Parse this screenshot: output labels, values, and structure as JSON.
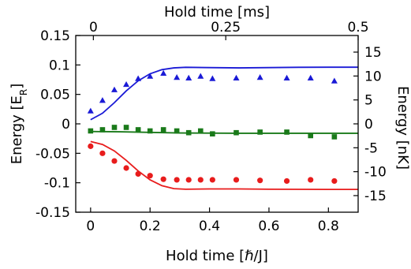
{
  "chart_data": {
    "type": "scatter",
    "title": "",
    "xlabel": "Hold time [ℏ/J]",
    "ylabel": "Energy [E_R]",
    "ylabel_main": "Energy [E",
    "ylabel_sub": "R",
    "ylabel_close": "]",
    "top_xlabel": "Hold time [ms]",
    "right_ylabel": "Energy [nK]",
    "xlim": [
      -0.05,
      0.9
    ],
    "ylim": [
      -0.15,
      0.15
    ],
    "top_xlim": [
      -0.0333,
      0.5
    ],
    "right_ylim": [
      -18.47,
      18.47
    ],
    "x_ticks": [
      0,
      0.2,
      0.4,
      0.6,
      0.8
    ],
    "x_tick_labels": [
      "0",
      "0.2",
      "0.4",
      "0.6",
      "0.8"
    ],
    "y_ticks": [
      -0.15,
      -0.1,
      -0.05,
      0,
      0.05,
      0.1,
      0.15
    ],
    "y_tick_labels": [
      "-0.15",
      "-0.1",
      "-0.05",
      "0",
      "0.05",
      "0.1",
      "0.15"
    ],
    "top_ticks": [
      0,
      0.25,
      0.5
    ],
    "top_tick_labels": [
      "0",
      "0.25",
      "0.5"
    ],
    "right_ticks": [
      -15,
      -10,
      -5,
      0,
      5,
      10,
      15
    ],
    "right_tick_labels": [
      "-15",
      "-10",
      "-5",
      "0",
      "5",
      "10",
      "15"
    ],
    "grid": false,
    "series": [
      {
        "color": "#1a1ad6",
        "marker": "triangle",
        "points": [
          {
            "x": 0.0,
            "y": 0.022
          },
          {
            "x": 0.04,
            "y": 0.04
          },
          {
            "x": 0.08,
            "y": 0.058
          },
          {
            "x": 0.12,
            "y": 0.067
          },
          {
            "x": 0.16,
            "y": 0.077
          },
          {
            "x": 0.2,
            "y": 0.081
          },
          {
            "x": 0.245,
            "y": 0.086
          },
          {
            "x": 0.29,
            "y": 0.079
          },
          {
            "x": 0.33,
            "y": 0.078
          },
          {
            "x": 0.37,
            "y": 0.081
          },
          {
            "x": 0.41,
            "y": 0.077
          },
          {
            "x": 0.49,
            "y": 0.078
          },
          {
            "x": 0.57,
            "y": 0.079
          },
          {
            "x": 0.66,
            "y": 0.078
          },
          {
            "x": 0.74,
            "y": 0.078
          },
          {
            "x": 0.82,
            "y": 0.073
          }
        ],
        "curve": [
          {
            "x": 0.0,
            "y": 0.007
          },
          {
            "x": 0.04,
            "y": 0.018
          },
          {
            "x": 0.08,
            "y": 0.036
          },
          {
            "x": 0.12,
            "y": 0.056
          },
          {
            "x": 0.16,
            "y": 0.073
          },
          {
            "x": 0.2,
            "y": 0.085
          },
          {
            "x": 0.24,
            "y": 0.092
          },
          {
            "x": 0.28,
            "y": 0.095
          },
          {
            "x": 0.32,
            "y": 0.096
          },
          {
            "x": 0.4,
            "y": 0.0955
          },
          {
            "x": 0.5,
            "y": 0.095
          },
          {
            "x": 0.6,
            "y": 0.0955
          },
          {
            "x": 0.7,
            "y": 0.096
          },
          {
            "x": 0.8,
            "y": 0.0962
          },
          {
            "x": 0.9,
            "y": 0.0962
          }
        ]
      },
      {
        "color": "#1a7a1a",
        "marker": "square",
        "points": [
          {
            "x": 0.0,
            "y": -0.012
          },
          {
            "x": 0.04,
            "y": -0.01
          },
          {
            "x": 0.08,
            "y": -0.006
          },
          {
            "x": 0.12,
            "y": -0.006
          },
          {
            "x": 0.16,
            "y": -0.01
          },
          {
            "x": 0.2,
            "y": -0.012
          },
          {
            "x": 0.245,
            "y": -0.01
          },
          {
            "x": 0.29,
            "y": -0.012
          },
          {
            "x": 0.33,
            "y": -0.015
          },
          {
            "x": 0.37,
            "y": -0.012
          },
          {
            "x": 0.41,
            "y": -0.017
          },
          {
            "x": 0.49,
            "y": -0.015
          },
          {
            "x": 0.57,
            "y": -0.014
          },
          {
            "x": 0.66,
            "y": -0.014
          },
          {
            "x": 0.74,
            "y": -0.02
          },
          {
            "x": 0.82,
            "y": -0.022
          }
        ],
        "curve": [
          {
            "x": 0.0,
            "y": -0.013
          },
          {
            "x": 0.1,
            "y": -0.0135
          },
          {
            "x": 0.2,
            "y": -0.0145
          },
          {
            "x": 0.3,
            "y": -0.0155
          },
          {
            "x": 0.5,
            "y": -0.016
          },
          {
            "x": 0.7,
            "y": -0.016
          },
          {
            "x": 0.9,
            "y": -0.016
          }
        ]
      },
      {
        "color": "#e81c1c",
        "marker": "circle",
        "points": [
          {
            "x": 0.0,
            "y": -0.038
          },
          {
            "x": 0.04,
            "y": -0.05
          },
          {
            "x": 0.08,
            "y": -0.063
          },
          {
            "x": 0.12,
            "y": -0.075
          },
          {
            "x": 0.16,
            "y": -0.085
          },
          {
            "x": 0.2,
            "y": -0.088
          },
          {
            "x": 0.245,
            "y": -0.094
          },
          {
            "x": 0.29,
            "y": -0.095
          },
          {
            "x": 0.33,
            "y": -0.095
          },
          {
            "x": 0.37,
            "y": -0.095
          },
          {
            "x": 0.41,
            "y": -0.095
          },
          {
            "x": 0.49,
            "y": -0.095
          },
          {
            "x": 0.57,
            "y": -0.096
          },
          {
            "x": 0.66,
            "y": -0.097
          },
          {
            "x": 0.74,
            "y": -0.095
          },
          {
            "x": 0.82,
            "y": -0.097
          }
        ],
        "curve": [
          {
            "x": 0.0,
            "y": -0.03
          },
          {
            "x": 0.04,
            "y": -0.035
          },
          {
            "x": 0.08,
            "y": -0.046
          },
          {
            "x": 0.12,
            "y": -0.062
          },
          {
            "x": 0.16,
            "y": -0.08
          },
          {
            "x": 0.2,
            "y": -0.095
          },
          {
            "x": 0.24,
            "y": -0.105
          },
          {
            "x": 0.28,
            "y": -0.11
          },
          {
            "x": 0.32,
            "y": -0.111
          },
          {
            "x": 0.4,
            "y": -0.1105
          },
          {
            "x": 0.5,
            "y": -0.1105
          },
          {
            "x": 0.6,
            "y": -0.111
          },
          {
            "x": 0.7,
            "y": -0.1112
          },
          {
            "x": 0.8,
            "y": -0.1113
          },
          {
            "x": 0.9,
            "y": -0.1113
          }
        ]
      }
    ]
  }
}
